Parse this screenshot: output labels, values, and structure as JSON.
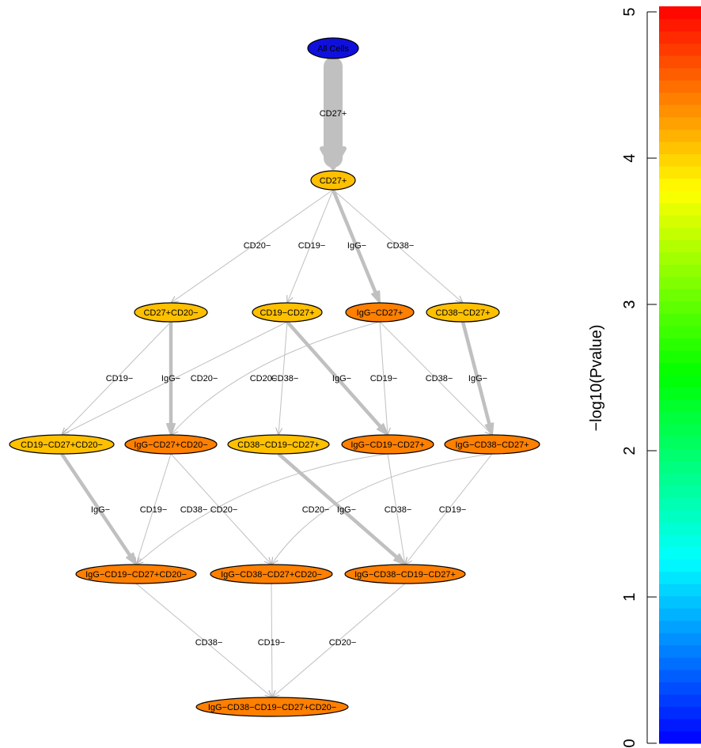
{
  "colors": {
    "edge": "#c0c0c0",
    "node_stroke": "#000000",
    "low": "#0000ff",
    "mid": "#ffd700",
    "high": "#ff0000"
  },
  "nodes": [
    {
      "id": "all",
      "label": "All Cells",
      "color": "#1010dd",
      "text_color": "#ffffff"
    },
    {
      "id": "cd27",
      "label": "CD27+",
      "color": "#ffc000"
    },
    {
      "id": "cd27cd20",
      "label": "CD27+CD20−",
      "color": "#ffc000"
    },
    {
      "id": "cd19cd27",
      "label": "CD19−CD27+",
      "color": "#ffc000"
    },
    {
      "id": "iggcd27",
      "label": "IgG−CD27+",
      "color": "#ff7f00"
    },
    {
      "id": "cd38cd27",
      "label": "CD38−CD27+",
      "color": "#ffc000"
    },
    {
      "id": "cd19cd27cd20",
      "label": "CD19−CD27+CD20−",
      "color": "#ffc000"
    },
    {
      "id": "iggcd27cd20",
      "label": "IgG−CD27+CD20−",
      "color": "#ff7f00"
    },
    {
      "id": "cd38cd19cd27",
      "label": "CD38−CD19−CD27+",
      "color": "#ffc000"
    },
    {
      "id": "iggcd19cd27",
      "label": "IgG−CD19−CD27+",
      "color": "#ff7f00"
    },
    {
      "id": "iggcd38cd27",
      "label": "IgG−CD38−CD27+",
      "color": "#ff7f00"
    },
    {
      "id": "iggcd19cd27cd20",
      "label": "IgG−CD19−CD27+CD20−",
      "color": "#ff7f00"
    },
    {
      "id": "iggcd38cd27cd20",
      "label": "IgG−CD38−CD27+CD20−",
      "color": "#ff7f00"
    },
    {
      "id": "iggcd38cd19cd27",
      "label": "IgG−CD38−CD19−CD27+",
      "color": "#ff7f00"
    },
    {
      "id": "final",
      "label": "IgG−CD38−CD19−CD27+CD20−",
      "color": "#ff7f00"
    }
  ],
  "edges": [
    {
      "from": "all",
      "to": "cd27",
      "label": "CD27+",
      "weight": 5
    },
    {
      "from": "cd27",
      "to": "cd27cd20",
      "label": "CD20−",
      "weight": 1
    },
    {
      "from": "cd27",
      "to": "cd19cd27",
      "label": "CD19−",
      "weight": 1
    },
    {
      "from": "cd27",
      "to": "iggcd27",
      "label": "IgG−",
      "weight": 2
    },
    {
      "from": "cd27",
      "to": "cd38cd27",
      "label": "CD38−",
      "weight": 1
    },
    {
      "from": "cd27cd20",
      "to": "cd19cd27cd20",
      "label": "CD19−",
      "weight": 1
    },
    {
      "from": "cd27cd20",
      "to": "iggcd27cd20",
      "label": "IgG−",
      "weight": 2
    },
    {
      "from": "cd19cd27",
      "to": "cd19cd27cd20",
      "label": "CD20−",
      "weight": 1
    },
    {
      "from": "iggcd27",
      "to": "iggcd27cd20",
      "label": "CD20−",
      "weight": 1
    },
    {
      "from": "cd19cd27",
      "to": "cd38cd19cd27",
      "label": "CD38−",
      "weight": 1
    },
    {
      "from": "cd19cd27",
      "to": "iggcd19cd27",
      "label": "IgG−",
      "weight": 2
    },
    {
      "from": "iggcd27",
      "to": "iggcd19cd27",
      "label": "CD19−",
      "weight": 1
    },
    {
      "from": "iggcd27",
      "to": "iggcd38cd27",
      "label": "CD38−",
      "weight": 1
    },
    {
      "from": "cd38cd27",
      "to": "iggcd38cd27",
      "label": "IgG−",
      "weight": 2
    },
    {
      "from": "cd19cd27cd20",
      "to": "iggcd19cd27cd20",
      "label": "IgG−",
      "weight": 2
    },
    {
      "from": "iggcd27cd20",
      "to": "iggcd19cd27cd20",
      "label": "CD19−",
      "weight": 1
    },
    {
      "from": "iggcd27cd20",
      "to": "iggcd38cd27cd20",
      "label": "CD38−",
      "weight": 1
    },
    {
      "from": "iggcd19cd27",
      "to": "iggcd19cd27cd20",
      "label": "CD20−",
      "weight": 1
    },
    {
      "from": "iggcd38cd27",
      "to": "iggcd38cd27cd20",
      "label": "CD20−",
      "weight": 1
    },
    {
      "from": "cd38cd19cd27",
      "to": "iggcd38cd19cd27",
      "label": "IgG−",
      "weight": 2
    },
    {
      "from": "iggcd19cd27",
      "to": "iggcd38cd19cd27",
      "label": "CD38−",
      "weight": 1
    },
    {
      "from": "iggcd38cd27",
      "to": "iggcd38cd19cd27",
      "label": "CD19−",
      "weight": 1
    },
    {
      "from": "iggcd19cd27cd20",
      "to": "final",
      "label": "CD38−",
      "weight": 1
    },
    {
      "from": "iggcd38cd27cd20",
      "to": "final",
      "label": "CD19−",
      "weight": 1
    },
    {
      "from": "iggcd38cd19cd27",
      "to": "final",
      "label": "CD20−",
      "weight": 1
    }
  ],
  "colorbar": {
    "title": "−log10(Pvalue)",
    "min": 0,
    "max": 5,
    "ticks": [
      "0",
      "1",
      "2",
      "3",
      "4",
      "5"
    ]
  }
}
